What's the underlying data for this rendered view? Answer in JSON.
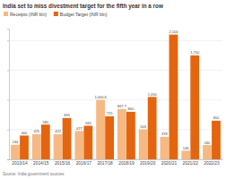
{
  "chart_data": {
    "type": "bar",
    "title": "India set to miss divestment target for the fifth year in a row",
    "categories": [
      "2013/14",
      "2014/15",
      "2015/16",
      "2016/17",
      "2017/18",
      "2018/19",
      "2019/20",
      "2020/21",
      "2021/22",
      "2022/23"
    ],
    "series": [
      {
        "name": "Receipts (INR bln)",
        "color": "#f6b983",
        "values": [
          244,
          425,
          422,
          477,
          1000.6,
          847.7,
          503,
          378,
          146,
          240
        ],
        "value_labels": [
          "244",
          "425",
          "422",
          "477",
          "1,000.6",
          "847.7",
          "503",
          "378",
          "146",
          "240"
        ]
      },
      {
        "name": "Budget Target (INR bln)",
        "color": "#e4650f",
        "values": [
          400,
          585,
          695,
          565,
          725,
          800,
          1050,
          2100,
          1750,
          650
        ],
        "value_labels": [
          "400",
          "585",
          "695",
          "565",
          "725",
          "800",
          "1,050",
          "2,100",
          "1,750",
          "650"
        ]
      }
    ],
    "ylim": [
      0,
      2200
    ],
    "yticks": [
      0,
      500,
      1000,
      1500,
      2000
    ],
    "grid": true,
    "legend": "top-left",
    "data_labels": true,
    "tick_labels": "x",
    "source": "Source: India government sources"
  }
}
